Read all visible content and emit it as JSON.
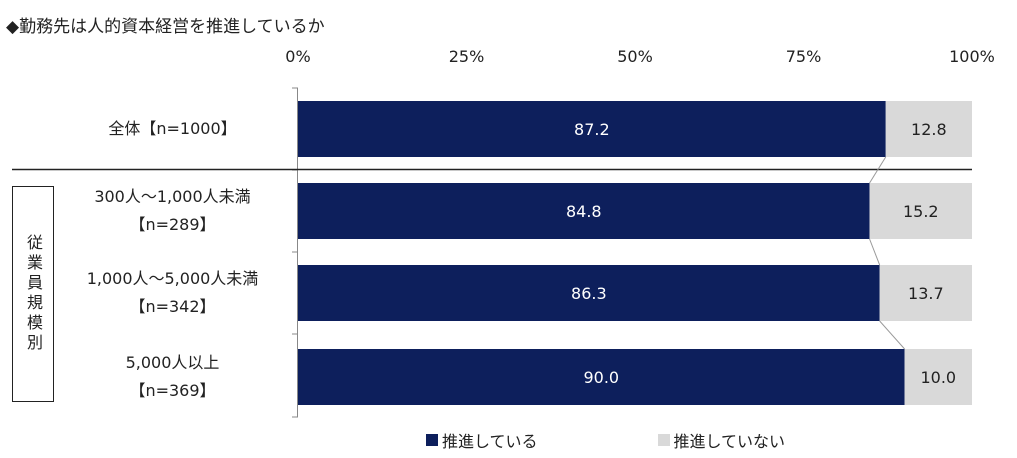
{
  "title": "◆勤務先は人的資本経営を推進しているか",
  "group_label": "従業員規模別",
  "colors": {
    "yes": "#0d1f5c",
    "no": "#d9d9d9"
  },
  "chart_data": {
    "type": "bar",
    "orientation": "horizontal",
    "stacked": true,
    "normalized": true,
    "categories": [
      {
        "line1": "全体【n=1000】",
        "line2": ""
      },
      {
        "line1": "300人～1,000人未満",
        "line2": "【n=289】"
      },
      {
        "line1": "1,000人～5,000人未満",
        "line2": "【n=342】"
      },
      {
        "line1": "5,000人以上",
        "line2": "【n=369】"
      }
    ],
    "series": [
      {
        "name": "推進している",
        "values": [
          87.2,
          84.8,
          86.3,
          90.0
        ],
        "labels": [
          "87.2",
          "84.8",
          "86.3",
          "90.0"
        ]
      },
      {
        "name": "推進していない",
        "values": [
          12.8,
          15.2,
          13.7,
          10.0
        ],
        "labels": [
          "12.8",
          "15.2",
          "13.7",
          "10.0"
        ]
      }
    ],
    "xlim": [
      0,
      100
    ],
    "xticks": [
      0,
      25,
      50,
      75,
      100
    ],
    "xtick_labels": [
      "0%",
      "25%",
      "50%",
      "75%",
      "100%"
    ],
    "legend_position": "bottom",
    "grid": false
  }
}
